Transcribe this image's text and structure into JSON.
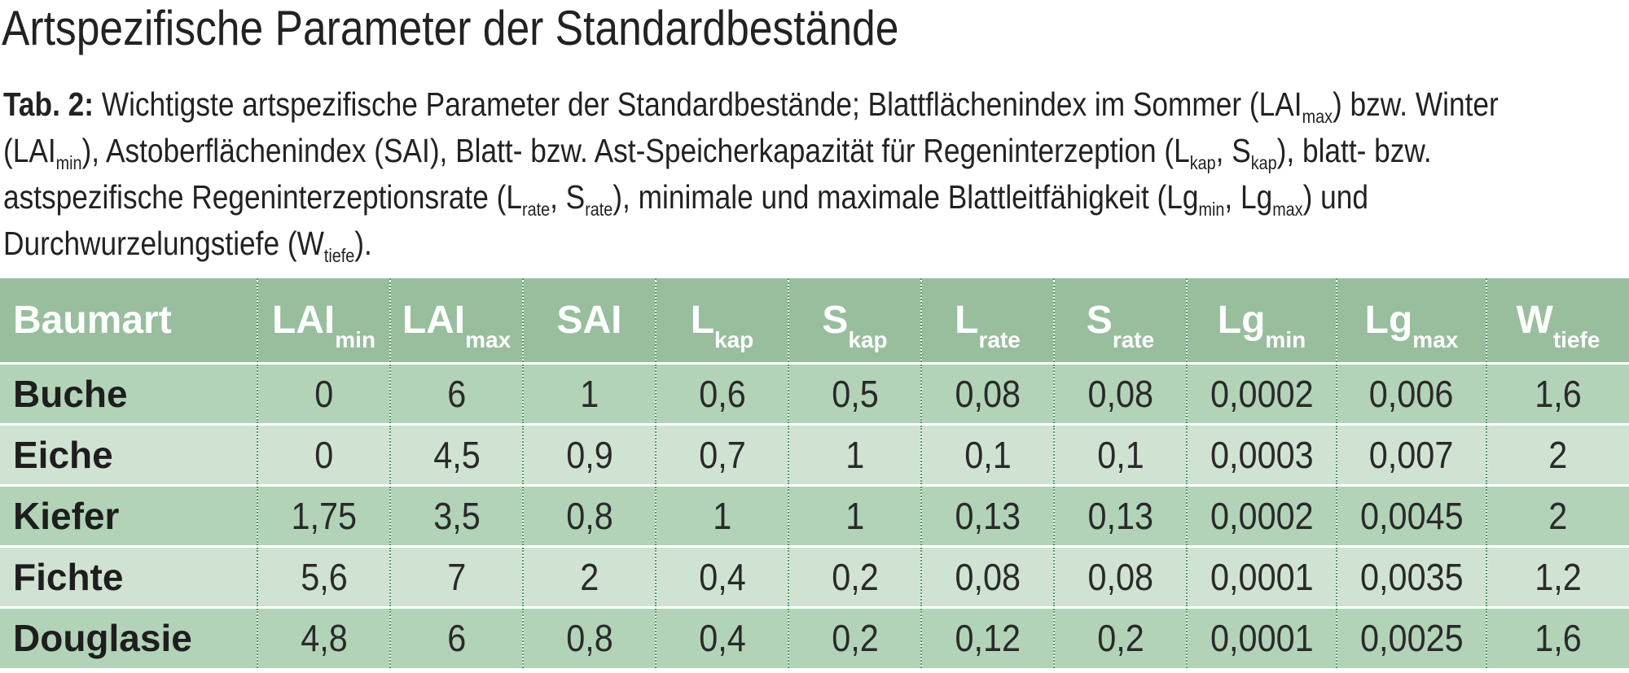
{
  "title": "Artspezifische Parameter der Standardbestände",
  "caption": {
    "label": "Tab. 2:",
    "p1": " Wichtigste artspezifische Parameter der Standardbestände; Blattflächenindex im Sommer (LAI",
    "s1": "max",
    "p2": ") bzw. Winter (LAI",
    "s2": "min",
    "p3": "), Astoberflächenindex (SAI), Blatt- bzw. Ast-Speicherkapazität für Regeninterzeption (L",
    "s3": "kap",
    "p4": ", S",
    "s4": "kap",
    "p5": "), blatt- bzw. astspezifische Regeninterzeptionsrate (L",
    "s5": "rate",
    "p6": ", S",
    "s6": "rate",
    "p7": "), minimale und maximale Blattleitfähigkeit (Lg",
    "s7": "min",
    "p8": ", Lg",
    "s8": "max",
    "p9": ") und Durchwurzelungstiefe (W",
    "s9": "tiefe",
    "p10": ")."
  },
  "table": {
    "headers": [
      {
        "main": "Baumart",
        "sub": ""
      },
      {
        "main": "LAI",
        "sub": "min"
      },
      {
        "main": "LAI",
        "sub": "max"
      },
      {
        "main": "SAI",
        "sub": ""
      },
      {
        "main": "L",
        "sub": "kap"
      },
      {
        "main": "S",
        "sub": "kap"
      },
      {
        "main": "L",
        "sub": "rate"
      },
      {
        "main": "S",
        "sub": "rate"
      },
      {
        "main": "Lg",
        "sub": "min"
      },
      {
        "main": "Lg",
        "sub": "max"
      },
      {
        "main": "W",
        "sub": "tiefe"
      }
    ],
    "rows": [
      [
        "Buche",
        "0",
        "6",
        "1",
        "0,6",
        "0,5",
        "0,08",
        "0,08",
        "0,0002",
        "0,006",
        "1,6"
      ],
      [
        "Eiche",
        "0",
        "4,5",
        "0,9",
        "0,7",
        "1",
        "0,1",
        "0,1",
        "0,0003",
        "0,007",
        "2"
      ],
      [
        "Kiefer",
        "1,75",
        "3,5",
        "0,8",
        "1",
        "1",
        "0,13",
        "0,13",
        "0,0002",
        "0,0045",
        "2"
      ],
      [
        "Fichte",
        "5,6",
        "7",
        "2",
        "0,4",
        "0,2",
        "0,08",
        "0,08",
        "0,0001",
        "0,0035",
        "1,2"
      ],
      [
        "Douglasie",
        "4,8",
        "6",
        "0,8",
        "0,4",
        "0,2",
        "0,12",
        "0,2",
        "0,0001",
        "0,0025",
        "1,6"
      ]
    ]
  }
}
